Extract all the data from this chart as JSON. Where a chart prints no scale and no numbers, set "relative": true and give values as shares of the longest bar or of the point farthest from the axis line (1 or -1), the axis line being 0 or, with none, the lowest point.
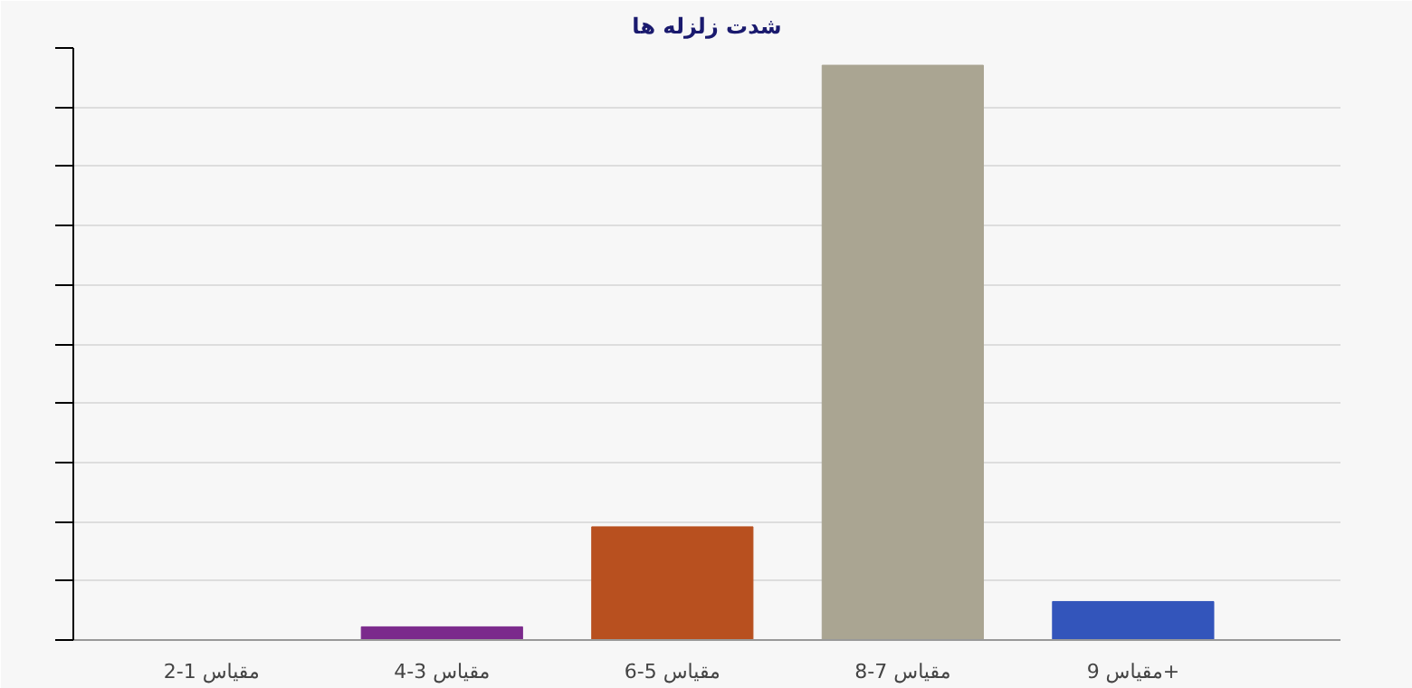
{
  "chart_data": {
    "type": "bar",
    "title": "شدت زلزله ها",
    "categories": [
      "مقیاس 1-2",
      "مقیاس 3-4",
      "مقیاس 5-6",
      "مقیاس 7-8",
      "مقیاس 9+"
    ],
    "colors": [
      "#7a7a7a",
      "#7b2a8c",
      "#b8501f",
      "#aaa592",
      "#3355bb"
    ],
    "values": [
      0,
      0.023,
      0.197,
      1,
      0.067
    ],
    "relative": true,
    "grid": "y"
  }
}
